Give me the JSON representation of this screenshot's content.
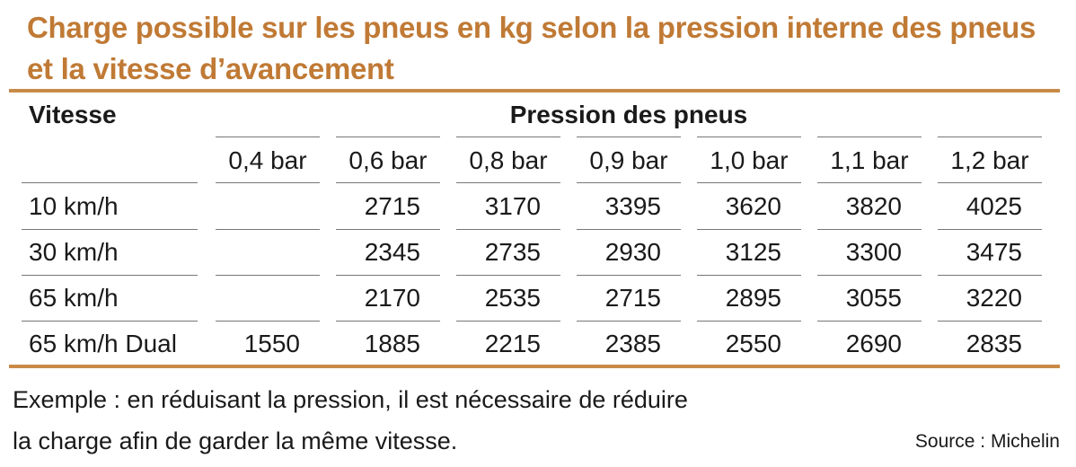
{
  "title": "Charge possible sur les pneus en kg selon la pression interne des pneus et la vitesse d’avancement",
  "table": {
    "speed_header": "Vitesse",
    "pressure_header": "Pression des pneus",
    "pressures": [
      "0,4 bar",
      "0,6 bar",
      "0,8 bar",
      "0,9 bar",
      "1,0 bar",
      "1,1 bar",
      "1,2 bar"
    ],
    "rows": [
      {
        "speed": "10 km/h",
        "values": [
          "",
          "2715",
          "3170",
          "3395",
          "3620",
          "3820",
          "4025"
        ]
      },
      {
        "speed": "30 km/h",
        "values": [
          "",
          "2345",
          "2735",
          "2930",
          "3125",
          "3300",
          "3475"
        ]
      },
      {
        "speed": "65 km/h",
        "values": [
          "",
          "2170",
          "2535",
          "2715",
          "2895",
          "3055",
          "3220"
        ]
      },
      {
        "speed": "65 km/h Dual",
        "values": [
          "1550",
          "1885",
          "2215",
          "2385",
          "2550",
          "2690",
          "2835"
        ]
      }
    ]
  },
  "footer": {
    "example_line1": "Exemple : en réduisant la pression, il est nécessaire de réduire",
    "example_line2": "la charge afin de garder la même vitesse.",
    "source": "Source : Michelin"
  },
  "colors": {
    "accent": "#c07a35",
    "rule": "#c98a48",
    "text": "#1a1a1a",
    "gridline": "#777777"
  }
}
